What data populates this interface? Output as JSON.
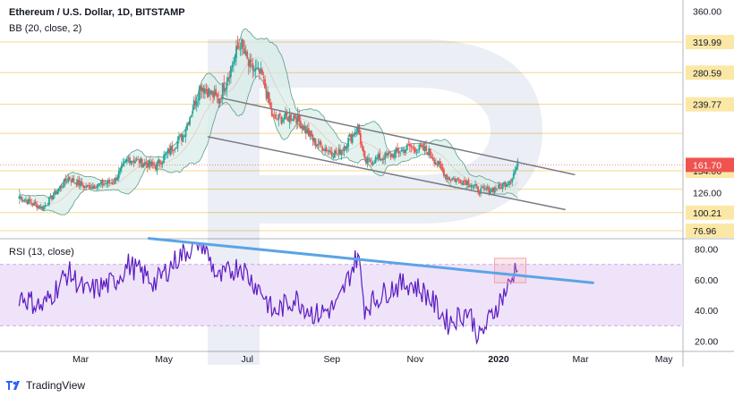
{
  "header": {
    "title": "Ethereum / U.S. Dollar, 1D, BITSTAMP",
    "indicator": "BB (20, close, 2)",
    "rsi_label": "RSI (13, close)"
  },
  "footer": {
    "brand": "TradingView",
    "icon": "tradingview-logo-icon"
  },
  "colors": {
    "up": "#26a69a",
    "down": "#ef5350",
    "level_line": "#f7d889",
    "level_label": "#fbe8a6",
    "current_price": "#ef5350",
    "bb_fill": "#d7ece7",
    "bb_line": "#5b9c8e",
    "channel": "#787b86",
    "rsi_trend": "#5ba4e6",
    "rsi_line": "#5b1cc2",
    "rsi_band": "#efe3f9",
    "highlight": "#f3a3ac"
  },
  "chart_data": [
    {
      "type": "candlestick",
      "title": "Ethereum / U.S. Dollar, 1D, BITSTAMP",
      "x_months": [
        "Mar",
        "May",
        "Jul",
        "Sep",
        "Nov",
        "2020",
        "Mar",
        "May"
      ],
      "y_ticks": [
        76.96,
        100.21,
        126.0,
        154.06,
        239.77,
        280.59,
        319.99,
        360.0
      ],
      "horizontal_levels": [
        319.99,
        280.59,
        239.77,
        202.38,
        154.06,
        130.36,
        100.21,
        76.96
      ],
      "current_price": 161.7,
      "ylim": [
        70,
        365
      ],
      "trend_lines": [
        {
          "name": "channel-top",
          "from": [
            "2019-06-12",
            248
          ],
          "to": [
            "2020-02-26",
            149
          ]
        },
        {
          "name": "channel-bottom",
          "from": [
            "2019-06-02",
            198
          ],
          "to": [
            "2020-02-19",
            104
          ]
        }
      ],
      "series_anchors": [
        [
          "2019-01-15",
          121
        ],
        [
          "2019-02-01",
          106
        ],
        [
          "2019-02-20",
          145
        ],
        [
          "2019-03-05",
          133
        ],
        [
          "2019-03-25",
          140
        ],
        [
          "2019-04-05",
          170
        ],
        [
          "2019-04-25",
          160
        ],
        [
          "2019-05-15",
          200
        ],
        [
          "2019-05-28",
          265
        ],
        [
          "2019-06-10",
          245
        ],
        [
          "2019-06-26",
          320
        ],
        [
          "2019-07-02",
          290
        ],
        [
          "2019-07-12",
          275
        ],
        [
          "2019-07-20",
          220
        ],
        [
          "2019-08-05",
          225
        ],
        [
          "2019-08-20",
          190
        ],
        [
          "2019-09-05",
          175
        ],
        [
          "2019-09-20",
          210
        ],
        [
          "2019-09-25",
          165
        ],
        [
          "2019-10-15",
          175
        ],
        [
          "2019-10-28",
          185
        ],
        [
          "2019-11-10",
          180
        ],
        [
          "2019-11-25",
          145
        ],
        [
          "2019-12-10",
          140
        ],
        [
          "2019-12-18",
          128
        ],
        [
          "2020-01-01",
          132
        ],
        [
          "2020-01-10",
          143
        ],
        [
          "2020-01-15",
          162
        ]
      ]
    },
    {
      "type": "line",
      "title": "RSI (13, close)",
      "y_ticks": [
        20.0,
        40.0,
        60.0,
        80.0
      ],
      "ylim": [
        15,
        85
      ],
      "band": [
        30,
        70
      ],
      "trend_line": {
        "from": [
          "2019-04-20",
          87
        ],
        "to": [
          "2020-03-10",
          58
        ]
      },
      "highlight_box": {
        "x_from": "2019-12-29",
        "x_to": "2020-01-21",
        "y_from": 58,
        "y_to": 74
      },
      "series_anchors": [
        [
          "2019-01-15",
          50
        ],
        [
          "2019-02-01",
          42
        ],
        [
          "2019-02-20",
          65
        ],
        [
          "2019-03-05",
          52
        ],
        [
          "2019-03-25",
          58
        ],
        [
          "2019-04-05",
          70
        ],
        [
          "2019-04-25",
          58
        ],
        [
          "2019-05-12",
          75
        ],
        [
          "2019-05-28",
          86
        ],
        [
          "2019-06-10",
          60
        ],
        [
          "2019-06-26",
          70
        ],
        [
          "2019-07-02",
          62
        ],
        [
          "2019-07-12",
          52
        ],
        [
          "2019-07-20",
          38
        ],
        [
          "2019-08-05",
          48
        ],
        [
          "2019-08-20",
          37
        ],
        [
          "2019-09-05",
          43
        ],
        [
          "2019-09-20",
          77
        ],
        [
          "2019-09-25",
          42
        ],
        [
          "2019-10-15",
          55
        ],
        [
          "2019-10-28",
          58
        ],
        [
          "2019-11-10",
          50
        ],
        [
          "2019-11-25",
          32
        ],
        [
          "2019-12-10",
          40
        ],
        [
          "2019-12-18",
          22
        ],
        [
          "2020-01-01",
          45
        ],
        [
          "2020-01-10",
          58
        ],
        [
          "2020-01-15",
          73
        ]
      ]
    }
  ]
}
